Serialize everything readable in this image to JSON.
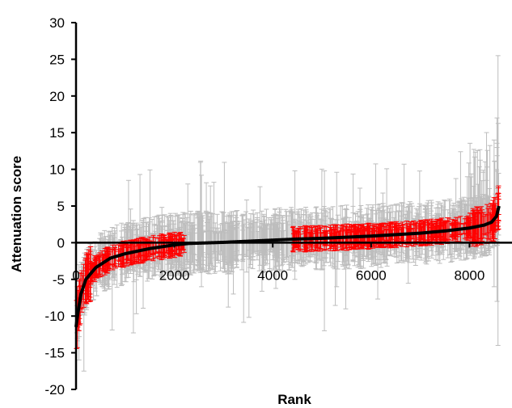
{
  "chart_data": {
    "type": "scatter",
    "title": "",
    "xlabel": "Rank",
    "ylabel": "Attenuation score",
    "xlim": [
      0,
      8700
    ],
    "ylim": [
      -20,
      30
    ],
    "x_ticks": [
      0,
      2000,
      4000,
      6000,
      8000
    ],
    "y_ticks": [
      -20,
      -15,
      -10,
      -5,
      0,
      5,
      10,
      15,
      20,
      25,
      30
    ],
    "grid": false,
    "legend": "none",
    "n_points": 8600,
    "series": [
      {
        "role": "sorted attenuation score curve",
        "color": "#000000",
        "x": [
          0,
          40,
          100,
          200,
          400,
          700,
          1000,
          1500,
          2000,
          2300,
          3000,
          4000,
          4500,
          5000,
          6000,
          7000,
          7500,
          8000,
          8300,
          8450,
          8550,
          8600
        ],
        "y": [
          -11.5,
          -9.5,
          -7,
          -5,
          -3.4,
          -2.1,
          -1.5,
          -0.8,
          -0.3,
          -0.1,
          0.05,
          0.35,
          0.5,
          0.6,
          0.9,
          1.3,
          1.6,
          2.0,
          2.4,
          2.8,
          3.6,
          5.0
        ]
      }
    ],
    "error_bars": [
      {
        "role": "error bars, significant ranks",
        "color": "#ff0000",
        "ranges": [
          [
            0,
            2200
          ],
          [
            4400,
            8600
          ]
        ],
        "half_width_approx": 1.5
      },
      {
        "role": "error bars, non-significant ranks",
        "color": "#bdbdbd",
        "ranges": [
          [
            0,
            8600
          ]
        ],
        "half_width_approx": 3,
        "max_upper": 25.5,
        "min_lower": -17.5
      }
    ],
    "colors": {
      "curve": "#000000",
      "significant": "#ff0000",
      "nonsignificant": "#bdbdbd"
    }
  }
}
